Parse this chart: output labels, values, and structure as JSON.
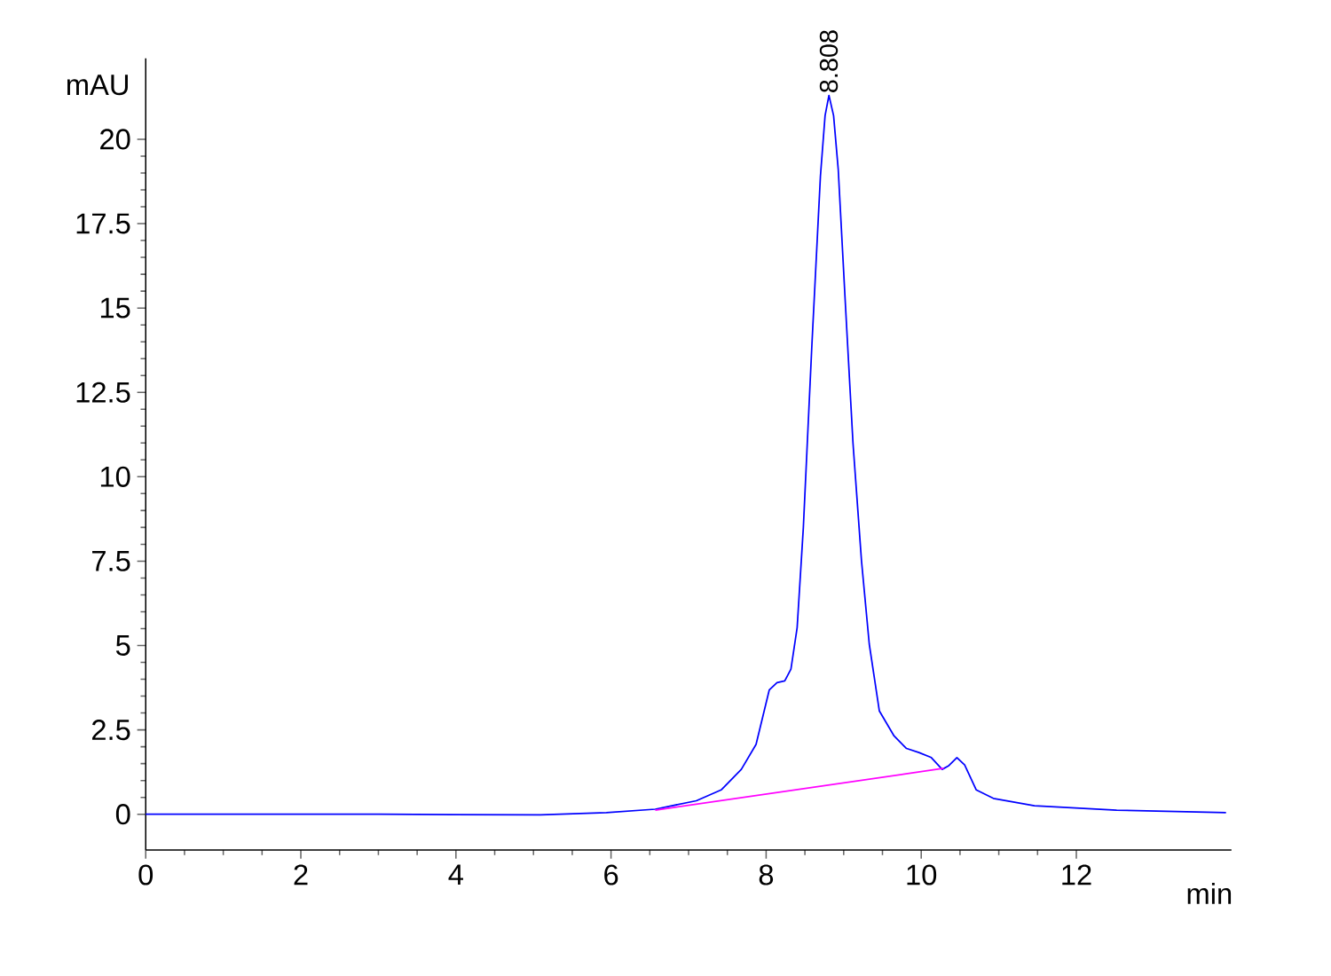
{
  "chart_data": {
    "type": "line",
    "xlabel": "min",
    "ylabel": "mAU",
    "xlim": [
      0,
      14
    ],
    "ylim": [
      -1.06,
      22.4
    ],
    "xticks": [
      0,
      2,
      4,
      6,
      8,
      10,
      12
    ],
    "yticks": [
      0,
      2.5,
      5,
      7.5,
      10,
      12.5,
      15,
      17.5,
      20
    ],
    "grid": false,
    "marker": "none",
    "line_style": "solid",
    "annotations": [
      {
        "text": "8.808",
        "x": 8.808,
        "y": 21.3
      }
    ],
    "series": [
      {
        "color": "#0000ff",
        "x": [
          0,
          3.0,
          5.09,
          5.94,
          6.57,
          7.1,
          7.42,
          7.68,
          7.87,
          8.04,
          8.14,
          8.24,
          8.32,
          8.4,
          8.48,
          8.59,
          8.7,
          8.76,
          8.81,
          8.87,
          8.93,
          9.02,
          9.12,
          9.23,
          9.33,
          9.46,
          9.65,
          9.81,
          9.97,
          10.13,
          10.27,
          10.35,
          10.46,
          10.56,
          10.71,
          10.93,
          11.46,
          12.52,
          13.93
        ],
        "values": [
          0,
          0,
          -0.02,
          0.05,
          0.15,
          0.4,
          0.72,
          1.33,
          2.07,
          3.68,
          3.9,
          3.95,
          4.3,
          5.53,
          8.5,
          13.9,
          18.9,
          20.7,
          21.3,
          20.7,
          19.1,
          15.2,
          11.0,
          7.5,
          5.04,
          3.06,
          2.32,
          1.95,
          1.83,
          1.68,
          1.33,
          1.43,
          1.68,
          1.46,
          0.72,
          0.47,
          0.25,
          0.12,
          0.05
        ]
      },
      {
        "color": "#ff00ff",
        "x": [
          6.57,
          10.29
        ],
        "values": [
          0.12,
          1.36
        ]
      }
    ]
  }
}
